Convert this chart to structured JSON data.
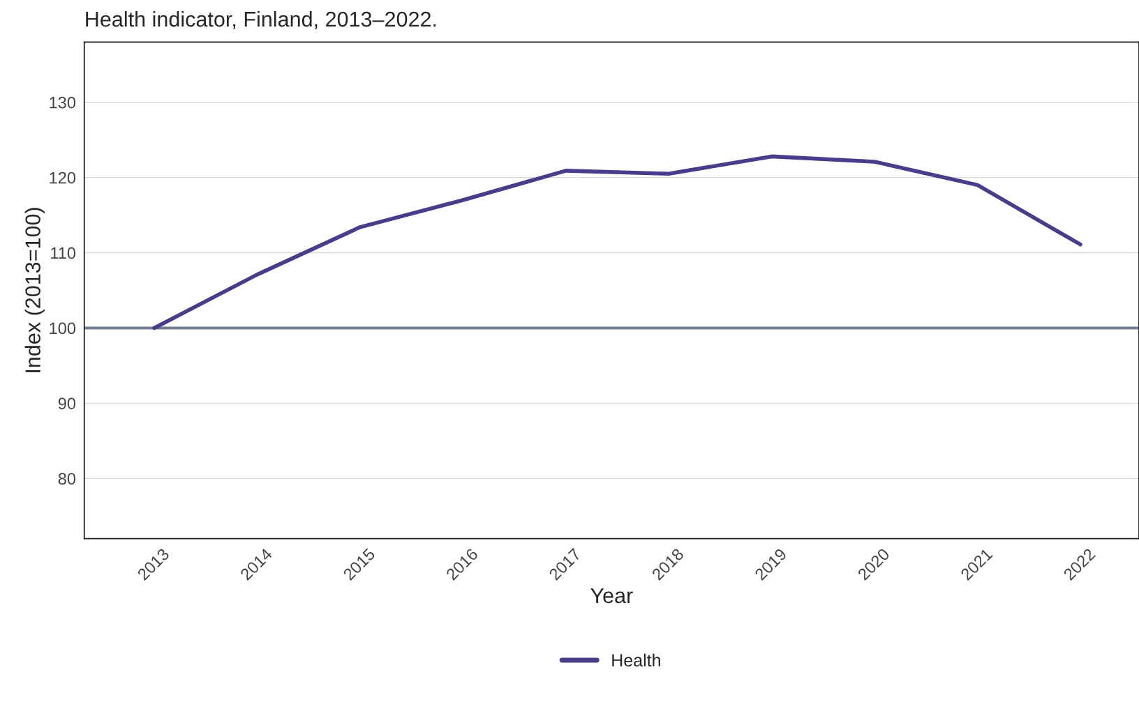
{
  "chart_data": {
    "type": "line",
    "title": "Health indicator, Finland, 2013–2022.",
    "xlabel": "Year",
    "ylabel": "Index (2013=100)",
    "x": [
      2013,
      2014,
      2015,
      2016,
      2017,
      2018,
      2019,
      2020,
      2021,
      2022
    ],
    "series": [
      {
        "name": "Health",
        "color": "#483d8b",
        "values": [
          100,
          107.1,
          113.4,
          117.0,
          120.9,
          120.5,
          122.8,
          122.1,
          119.0,
          111.1
        ]
      }
    ],
    "xlim": [
      2012.32,
      2022.57
    ],
    "xticks": [
      2013,
      2014,
      2015,
      2016,
      2017,
      2018,
      2019,
      2020,
      2021,
      2022
    ],
    "ylim": [
      72,
      138
    ],
    "yticks": [
      80,
      90,
      100,
      110,
      120,
      130
    ],
    "ref_lines": [
      {
        "axis": "y",
        "value": 100,
        "color": "#708090"
      }
    ],
    "grid": "y",
    "legend": "bottom",
    "marker": "none",
    "line_style": "solid"
  }
}
